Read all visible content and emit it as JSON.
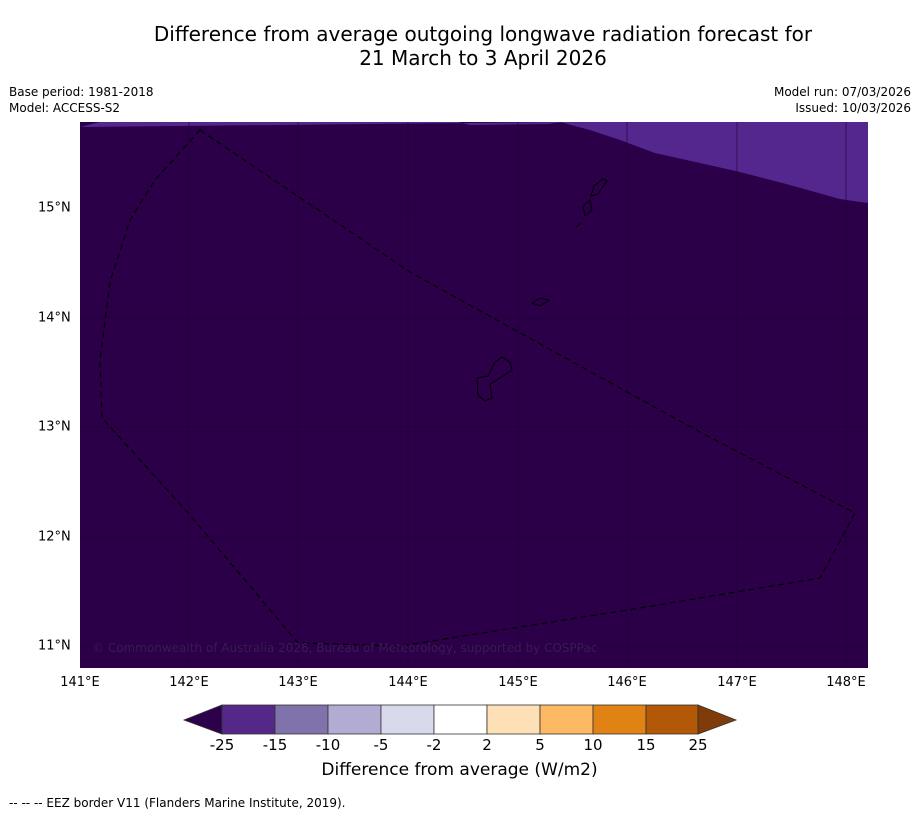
{
  "title": {
    "line1": "Difference from average outgoing longwave radiation forecast for",
    "line2": "21 March to 3 April 2026"
  },
  "meta": {
    "base_period": "Base period: 1981-2018",
    "model": "Model: ACCESS-S2",
    "model_run": "Model run: 07/03/2026",
    "issued": "Issued: 10/03/2026"
  },
  "map": {
    "copyright": "© Commonwealth of Australia 2026, Bureau of Meteorology, supported by COSPPac",
    "x_ticks": [
      "141°E",
      "142°E",
      "143°E",
      "144°E",
      "145°E",
      "146°E",
      "147°E",
      "148°E"
    ],
    "y_ticks": [
      "15°N",
      "14°N",
      "13°N",
      "12°N",
      "11°N"
    ],
    "colors": {
      "dominant_fill": "#2b0048",
      "upper_fill": "#54278f"
    }
  },
  "colorbar": {
    "tick_labels": [
      "-25",
      "-15",
      "-10",
      "-5",
      "-2",
      "2",
      "5",
      "10",
      "15",
      "25"
    ],
    "bin_colors": [
      "#2d004b",
      "#542788",
      "#8073ac",
      "#b2abd2",
      "#d8daeb",
      "#ffffff",
      "#fee0b6",
      "#fdb863",
      "#e08214",
      "#b35806",
      "#7f3b08"
    ],
    "label": "Difference from average (W/m2)"
  },
  "footer": {
    "legend": "--  --  -- EEZ border V11 (Flanders Marine Institute, 2019)."
  }
}
